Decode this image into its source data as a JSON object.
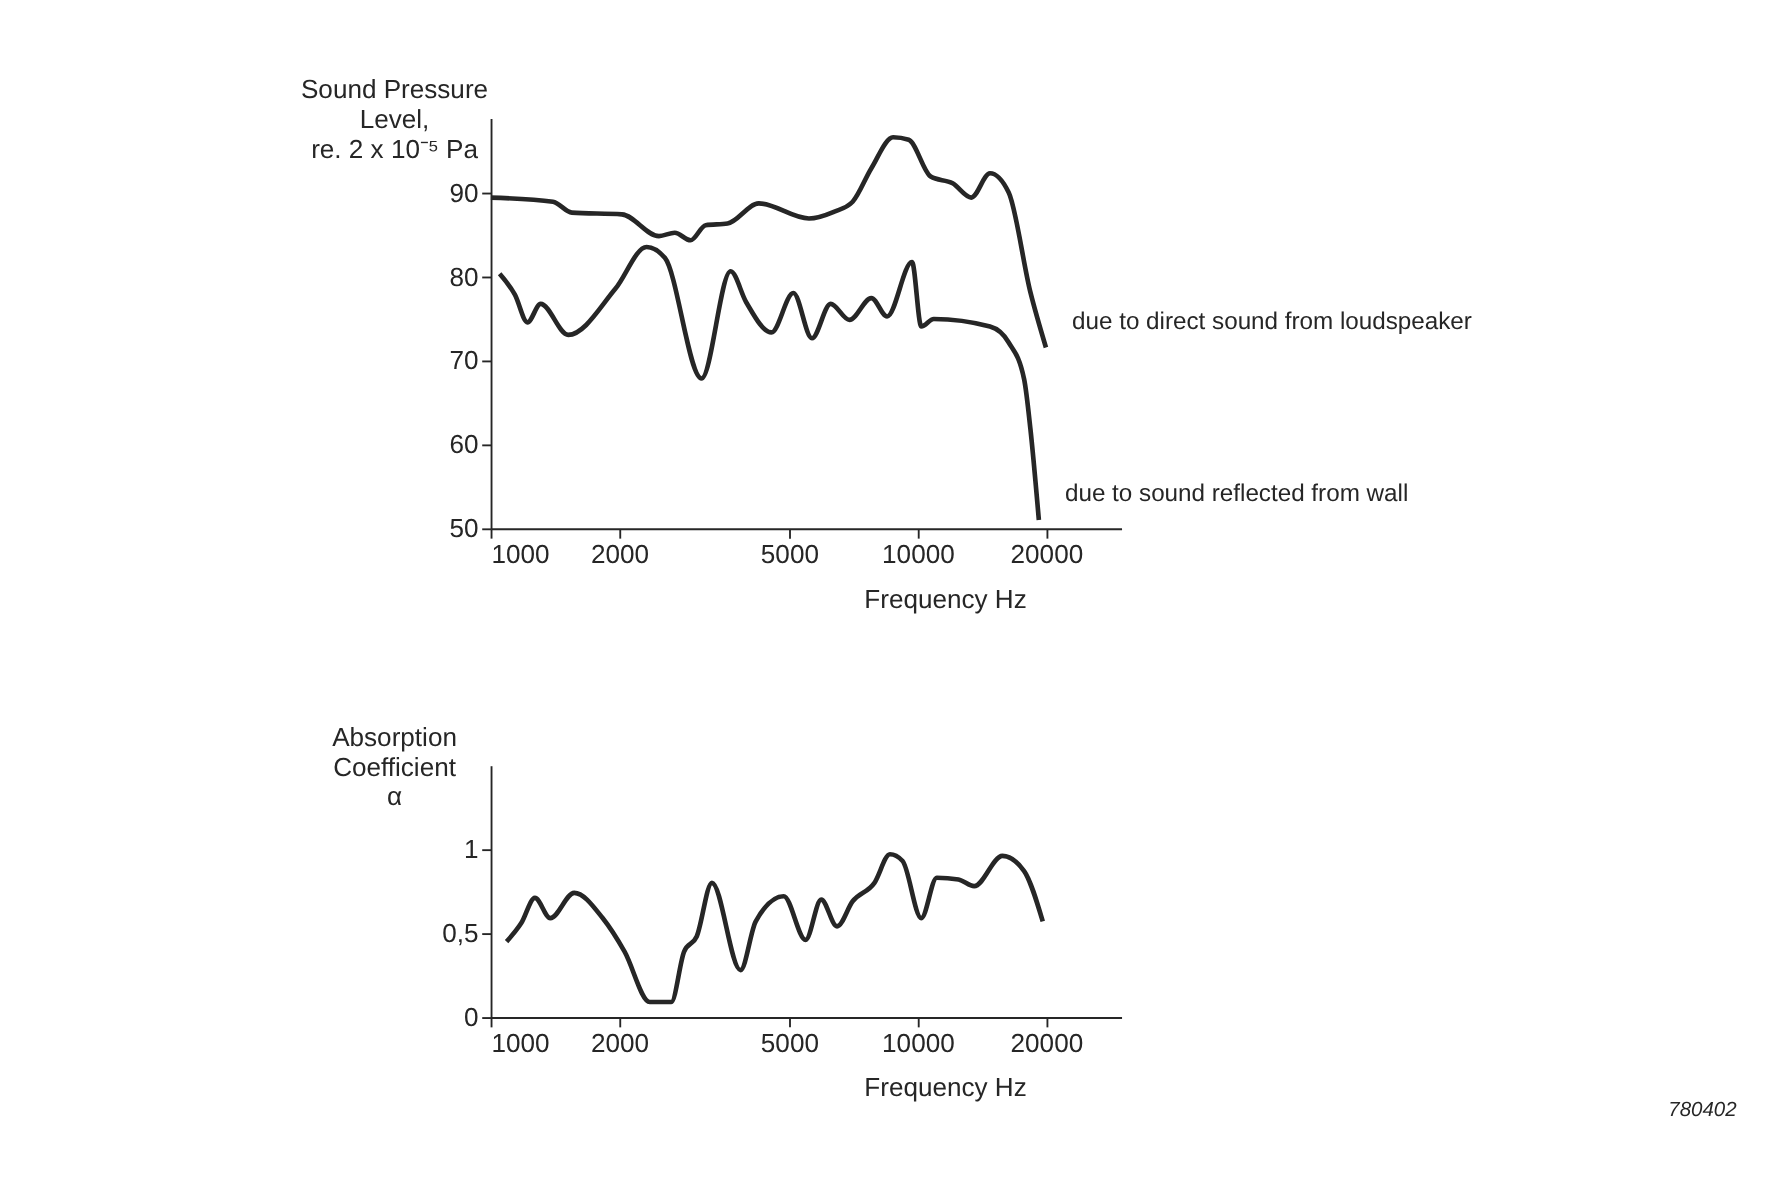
{
  "chart_data": [
    {
      "type": "line",
      "ylabel": "Sound Pressure\nLevel,\nre. 2 x 10⁻⁵ Pa",
      "xlabel": "Frequency Hz",
      "xlim": [
        1000,
        30000
      ],
      "xticks": [
        1000,
        2000,
        5000,
        10000,
        20000
      ],
      "log": "x",
      "ylim": [
        50,
        99
      ],
      "yticks": [
        50,
        60,
        70,
        80,
        90
      ],
      "grid": false,
      "legend": false,
      "marker": "none",
      "line_style": "solid",
      "series": [
        {
          "name": "due to direct sound from loudspeaker",
          "color": "#262626",
          "x": [
            1000,
            1400,
            1550,
            2030,
            2480,
            2700,
            2940,
            3190,
            3590,
            4250,
            5570,
            6370,
            7050,
            7800,
            8770,
            9540,
            10740,
            12090,
            13370,
            14790,
            16360,
            18390,
            20000
          ],
          "values": [
            89.5,
            89.0,
            87.7,
            87.5,
            84.9,
            85.3,
            84.4,
            86.2,
            86.4,
            88.8,
            87.0,
            87.8,
            89.0,
            93.0,
            96.7,
            96.4,
            92.0,
            91.2,
            89.5,
            92.4,
            90.1,
            78.2,
            71.6
          ]
        },
        {
          "name": "due to sound reflected from wall",
          "color": "#262626",
          "x": [
            1050,
            1140,
            1220,
            1310,
            1520,
            1960,
            2320,
            2560,
            3120,
            3650,
            3970,
            4550,
            5120,
            5660,
            6260,
            6930,
            7800,
            8490,
            9710,
            10210,
            10920,
            14790,
            16360,
            17780,
            18390,
            19250
          ],
          "values": [
            80.4,
            77.9,
            74.6,
            76.8,
            73.1,
            78.6,
            83.6,
            82.3,
            67.9,
            80.7,
            77.0,
            73.4,
            78.1,
            72.7,
            76.8,
            74.9,
            77.5,
            75.3,
            81.8,
            74.1,
            75.0,
            74.1,
            72.2,
            67.8,
            61.9,
            51.0
          ]
        }
      ]
    },
    {
      "type": "line",
      "ylabel": "Absorption\nCoefficient\nα",
      "xlabel": "Frequency Hz",
      "xlim": [
        1000,
        30000
      ],
      "xticks": [
        1000,
        2000,
        5000,
        10000,
        20000
      ],
      "log": "x",
      "ylim": [
        0,
        1.5
      ],
      "yticks": [
        0,
        {
          "value": 0.5,
          "label": "0,5"
        },
        1
      ],
      "grid": false,
      "legend": false,
      "marker": "none",
      "line_style": "solid",
      "annotations": [
        "780402"
      ],
      "series": [
        {
          "color": "#262626",
          "x": [
            1090,
            1180,
            1270,
            1380,
            1570,
            1830,
            2060,
            2360,
            2650,
            2840,
            3040,
            3300,
            3850,
            4180,
            4860,
            5470,
            5950,
            6480,
            7050,
            7930,
            8620,
            9230,
            10210,
            11100,
            12480,
            13580,
            15810,
            17780,
            19660
          ],
          "values": [
            0.45,
            0.56,
            0.71,
            0.59,
            0.74,
            0.59,
            0.39,
            0.09,
            0.09,
            0.39,
            0.48,
            0.8,
            0.28,
            0.57,
            0.72,
            0.46,
            0.7,
            0.54,
            0.69,
            0.8,
            0.97,
            0.93,
            0.59,
            0.83,
            0.82,
            0.78,
            0.96,
            0.87,
            0.57
          ]
        }
      ]
    }
  ]
}
